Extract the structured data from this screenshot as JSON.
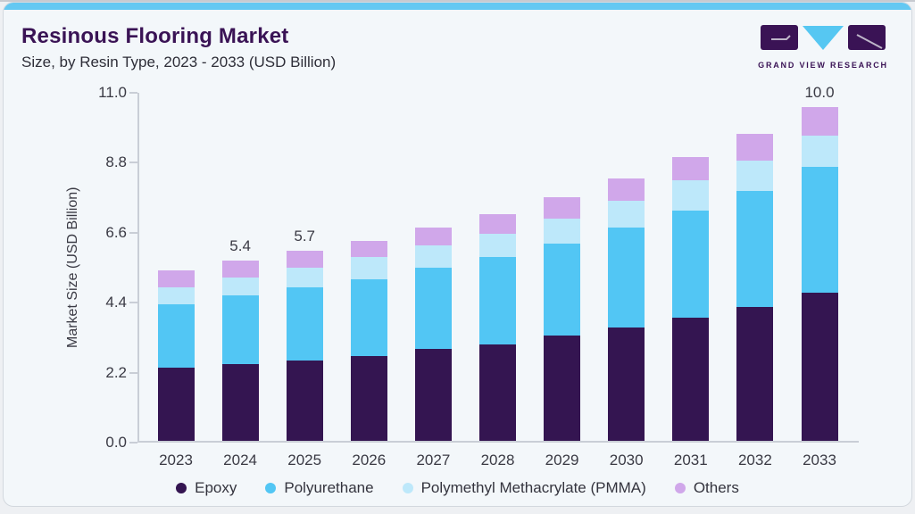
{
  "header": {
    "title": "Resinous Flooring Market",
    "subtitle": "Size, by Resin Type, 2023 - 2033 (USD Billion)"
  },
  "logo": {
    "text": "GRAND VIEW RESEARCH"
  },
  "chart_data": {
    "type": "bar",
    "stacked": true,
    "title": "Resinous Flooring Market",
    "subtitle": "Size, by Resin Type, 2023 - 2033 (USD Billion)",
    "ylabel": "Market Size (USD Billion)",
    "xlabel": "",
    "categories": [
      "2023",
      "2024",
      "2025",
      "2026",
      "2027",
      "2028",
      "2029",
      "2030",
      "2031",
      "2032",
      "2033"
    ],
    "series": [
      {
        "name": "Epoxy",
        "color": "#341551",
        "values": [
          2.2,
          2.3,
          2.4,
          2.55,
          2.75,
          2.9,
          3.15,
          3.4,
          3.7,
          4.0,
          4.45
        ]
      },
      {
        "name": "Polyurethane",
        "color": "#52C6F4",
        "values": [
          1.9,
          2.05,
          2.2,
          2.3,
          2.45,
          2.6,
          2.75,
          3.0,
          3.2,
          3.5,
          3.75
        ]
      },
      {
        "name": "Polymethyl Methacrylate (PMMA)",
        "color": "#BDE8FA",
        "values": [
          0.5,
          0.55,
          0.6,
          0.65,
          0.65,
          0.7,
          0.75,
          0.8,
          0.9,
          0.9,
          0.95
        ]
      },
      {
        "name": "Others",
        "color": "#D0A7EA",
        "values": [
          0.5,
          0.5,
          0.5,
          0.5,
          0.55,
          0.6,
          0.65,
          0.65,
          0.7,
          0.8,
          0.85
        ]
      }
    ],
    "totals": [
      5.1,
      5.4,
      5.7,
      6.0,
      6.4,
      6.8,
      7.3,
      7.85,
      8.5,
      9.2,
      10.0
    ],
    "bar_total_labels": [
      "",
      "5.4",
      "5.7",
      "",
      "",
      "",
      "",
      "",
      "",
      "",
      "10.0"
    ],
    "yticks": [
      "0.0",
      "2.2",
      "4.4",
      "6.6",
      "8.8",
      "11.0"
    ],
    "ylim": [
      0,
      11
    ],
    "grid": false,
    "legend_position": "bottom"
  },
  "colors": {
    "accent_bar": "#64C8F2",
    "card_bg": "#F3F7FA",
    "axis": "#C9CED6",
    "text": "#3A3A44",
    "brand_purple": "#3A1355",
    "logo_blue": "#56C7F2"
  }
}
